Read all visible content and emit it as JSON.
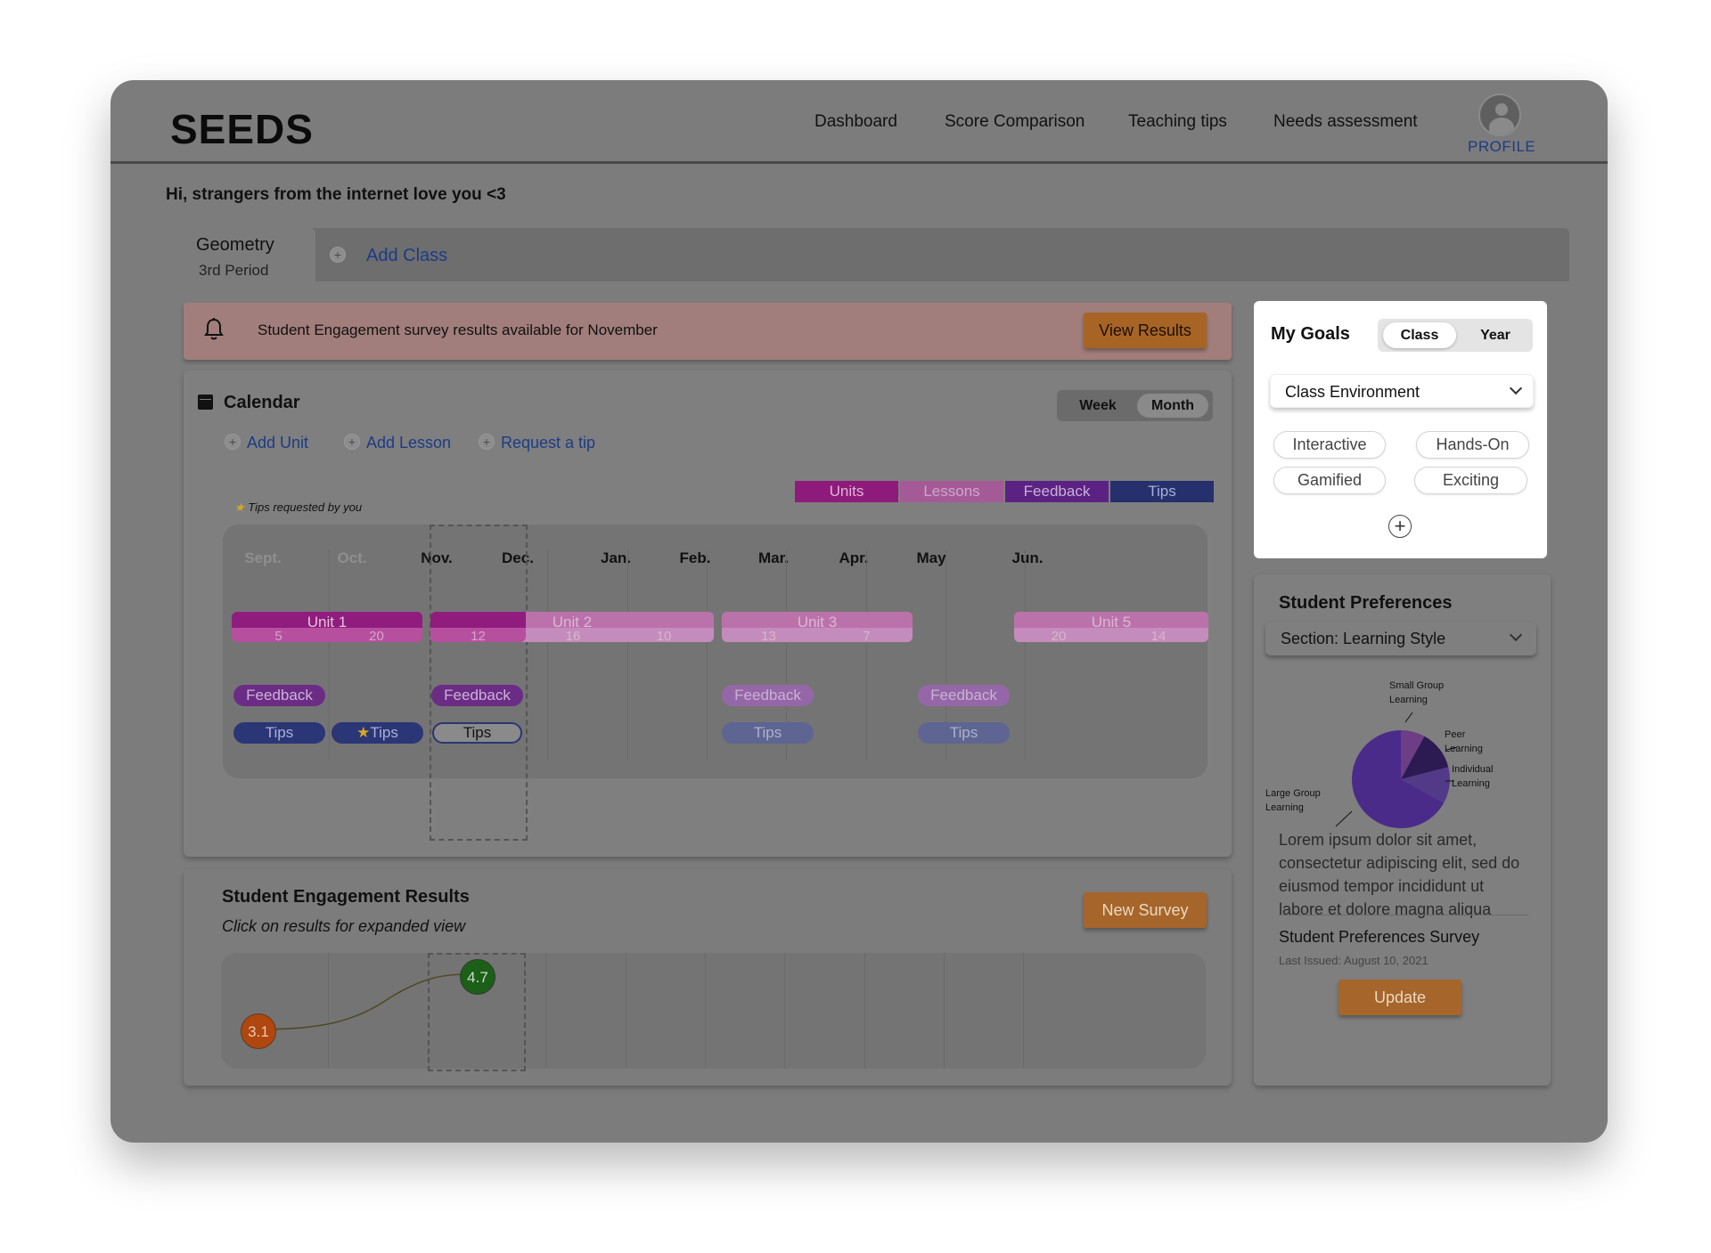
{
  "app": {
    "logo": "SEEDS"
  },
  "nav": {
    "items": [
      "Dashboard",
      "Score Comparison",
      "Teaching tips",
      "Needs assessment"
    ],
    "profile": "PROFILE"
  },
  "greeting": "Hi, strangers from the internet love you <3",
  "class_tab": {
    "title": "Geometry",
    "subtitle": "3rd Period",
    "add_class": "Add Class"
  },
  "banner": {
    "text": "Student Engagement survey results available for November",
    "button": "View Results"
  },
  "calendar": {
    "title": "Calendar",
    "toggle": [
      "Week",
      "Month"
    ],
    "toggle_selected": "Month",
    "actions": [
      "Add Unit",
      "Add Lesson",
      "Request a tip"
    ],
    "legend": [
      {
        "label": "Units",
        "color": "#8e1b7c"
      },
      {
        "label": "Lessons",
        "color": "#a55a98"
      },
      {
        "label": "Feedback",
        "color": "#5b2283"
      },
      {
        "label": "Tips",
        "color": "#26306d"
      }
    ],
    "tips_note": "Tips requested by you",
    "months": [
      "Sept.",
      "Oct.",
      "Nov.",
      "Dec.",
      "Jan.",
      "Feb.",
      "Mar.",
      "Apr.",
      "May",
      "Jun."
    ],
    "units": [
      {
        "label": "Unit 1",
        "lessons": [
          "5",
          "20"
        ]
      },
      {
        "label": "Unit 2",
        "lessons": [
          "12",
          "16",
          "10"
        ]
      },
      {
        "label": "Unit 3",
        "lessons": [
          "13",
          "7"
        ]
      },
      {
        "label": "Unit 5",
        "lessons": [
          "20",
          "14"
        ]
      }
    ],
    "feedback_label": "Feedback",
    "tips_label": "Tips"
  },
  "engagement": {
    "title": "Student Engagement Results",
    "subtitle": "Click on results for expanded view",
    "button": "New Survey",
    "scores": [
      "3.1",
      "4.7"
    ],
    "colors": {
      "low": "#b0470e",
      "high": "#1c5f18"
    }
  },
  "goals": {
    "title": "My Goals",
    "toggle": [
      "Class",
      "Year"
    ],
    "toggle_selected": "Class",
    "dropdown": "Class Environment",
    "chips": [
      "Interactive",
      "Hands-On",
      "Gamified",
      "Exciting"
    ]
  },
  "preferences": {
    "title": "Student Preferences",
    "dropdown": "Section: Learning Style",
    "chart_data": {
      "type": "pie",
      "labels": [
        "Small Group Learning",
        "Peer Learning",
        "Individual Learning",
        "Large Group Learning"
      ],
      "values": [
        8,
        13,
        12,
        67
      ],
      "colors": [
        "#6d3d86",
        "#2c1a52",
        "#523a89",
        "#4a2b8a"
      ]
    },
    "body": "Lorem ipsum dolor sit amet, consectetur adipiscing elit, sed do eiusmod tempor incididunt ut labore et dolore magna aliqua",
    "survey_title": "Student Preferences Survey",
    "survey_date": "Last Issued: August 10, 2021",
    "button": "Update"
  }
}
